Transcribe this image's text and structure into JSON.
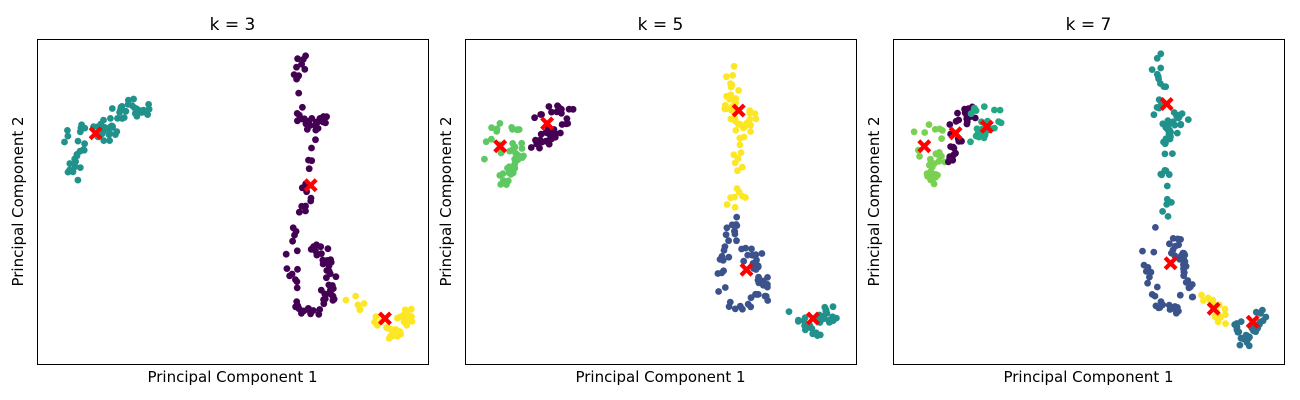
{
  "chart_data": [
    {
      "type": "scatter",
      "title": "k = 3",
      "xlabel": "Principal Component 1",
      "ylabel": "Principal Component 2",
      "xlim": [
        0,
        100
      ],
      "ylim": [
        0,
        100
      ],
      "xticks": "none",
      "yticks": "none",
      "grid": false,
      "legend": "none",
      "clusters": [
        {
          "color": "#21918c",
          "path": [
            [
              6,
              67
            ],
            [
              8,
              71
            ],
            [
              10,
              74
            ],
            [
              12,
              73
            ],
            [
              15,
              72
            ],
            [
              18,
              73
            ],
            [
              20,
              77
            ],
            [
              22,
              79
            ],
            [
              24,
              80
            ],
            [
              26,
              78
            ],
            [
              28,
              79
            ],
            [
              24,
              76
            ],
            [
              20,
              73
            ],
            [
              16,
              67
            ],
            [
              13,
              67
            ],
            [
              10,
              64
            ],
            [
              9,
              61
            ],
            [
              10,
              56
            ]
          ],
          "spread": 2.2,
          "count": 70
        },
        {
          "color": "#440154",
          "path": [
            [
              68,
              95
            ],
            [
              67,
              90
            ],
            [
              67,
              85
            ],
            [
              68,
              80
            ],
            [
              67,
              77
            ],
            [
              70,
              75
            ],
            [
              72,
              73
            ],
            [
              73,
              75
            ],
            [
              73,
              78
            ],
            [
              71,
              73
            ],
            [
              70,
              68
            ],
            [
              70,
              62
            ],
            [
              69,
              56
            ],
            [
              69,
              50
            ],
            [
              68,
              45
            ],
            [
              67,
              41
            ],
            [
              66,
              38
            ],
            [
              65,
              34
            ],
            [
              65,
              31
            ],
            [
              66,
              27
            ],
            [
              66,
              23
            ],
            [
              66,
              20
            ],
            [
              67,
              17
            ],
            [
              69,
              16
            ],
            [
              71,
              17
            ],
            [
              73,
              19
            ],
            [
              74,
              22
            ],
            [
              75,
              26
            ],
            [
              75,
              30
            ],
            [
              74,
              35
            ],
            [
              72,
              37
            ],
            [
              71,
              35
            ],
            [
              72,
              32
            ],
            [
              74,
              30
            ],
            [
              76,
              27
            ],
            [
              76,
              22
            ],
            [
              75,
              19
            ],
            [
              74,
              17
            ],
            [
              72,
              16
            ],
            [
              70,
              15
            ]
          ],
          "spread": 1.6,
          "count": 110
        },
        {
          "color": "#fde725",
          "path": [
            [
              78,
              21
            ],
            [
              81,
              20
            ],
            [
              84,
              17
            ],
            [
              87,
              14
            ],
            [
              89,
              12
            ],
            [
              91,
              10
            ],
            [
              91,
              8
            ],
            [
              93,
              14
            ],
            [
              94,
              17
            ],
            [
              95,
              16
            ],
            [
              96,
              15
            ],
            [
              93,
              12
            ]
          ],
          "spread": 1.4,
          "count": 40
        }
      ],
      "centroids": [
        [
          15,
          71
        ],
        [
          70,
          55
        ],
        [
          89,
          14
        ]
      ],
      "centroid_color": "#ff0000"
    },
    {
      "type": "scatter",
      "title": "k = 5",
      "xlabel": "Principal Component 1",
      "ylabel": "Principal Component 2",
      "xlim": [
        0,
        100
      ],
      "ylim": [
        0,
        100
      ],
      "xticks": "none",
      "yticks": "none",
      "grid": false,
      "legend": "none",
      "clusters": [
        {
          "color": "#5ec962",
          "path": [
            [
              5,
              64
            ],
            [
              5,
              69
            ],
            [
              7,
              72
            ],
            [
              9,
              74
            ],
            [
              12,
              74
            ],
            [
              14,
              71
            ],
            [
              15,
              68
            ],
            [
              14,
              64
            ],
            [
              12,
              62
            ],
            [
              10,
              58
            ],
            [
              11,
              55
            ],
            [
              13,
              67
            ],
            [
              9,
              66
            ]
          ],
          "spread": 1.8,
          "count": 45
        },
        {
          "color": "#440154",
          "path": [
            [
              17,
              75
            ],
            [
              19,
              77
            ],
            [
              22,
              79
            ],
            [
              25,
              79
            ],
            [
              27,
              78
            ],
            [
              26,
              74
            ],
            [
              24,
              71
            ],
            [
              22,
              69
            ],
            [
              20,
              67
            ],
            [
              18,
              67
            ],
            [
              21,
              72
            ]
          ],
          "spread": 1.6,
          "count": 40
        },
        {
          "color": "#fde725",
          "path": [
            [
              68,
              95
            ],
            [
              68,
              90
            ],
            [
              68,
              85
            ],
            [
              69,
              80
            ],
            [
              67,
              76
            ],
            [
              70,
              74
            ],
            [
              72,
              72
            ],
            [
              74,
              75
            ],
            [
              73,
              78
            ],
            [
              71,
              73
            ],
            [
              70,
              68
            ],
            [
              70,
              62
            ],
            [
              69,
              56
            ],
            [
              70,
              52
            ],
            [
              68,
              48
            ]
          ],
          "spread": 1.6,
          "count": 60
        },
        {
          "color": "#3b528b",
          "path": [
            [
              70,
              45
            ],
            [
              68,
              41
            ],
            [
              67,
              37
            ],
            [
              66,
              34
            ],
            [
              65,
              30
            ],
            [
              66,
              26
            ],
            [
              66,
              22
            ],
            [
              68,
              18
            ],
            [
              70,
              16
            ],
            [
              72,
              17
            ],
            [
              74,
              19
            ],
            [
              75,
              23
            ],
            [
              75,
              27
            ],
            [
              75,
              32
            ],
            [
              74,
              36
            ],
            [
              72,
              37
            ],
            [
              71,
              34
            ],
            [
              73,
              31
            ],
            [
              75,
              29
            ],
            [
              77,
              26
            ],
            [
              77,
              22
            ],
            [
              78,
              19
            ]
          ],
          "spread": 1.6,
          "count": 60
        },
        {
          "color": "#21918c",
          "path": [
            [
              82,
              17
            ],
            [
              84,
              15
            ],
            [
              86,
              13
            ],
            [
              88,
              11
            ],
            [
              90,
              9
            ],
            [
              91,
              13
            ],
            [
              92,
              16
            ],
            [
              93,
              17
            ],
            [
              94,
              16
            ],
            [
              95,
              14
            ],
            [
              92,
              12
            ]
          ],
          "spread": 1.4,
          "count": 35
        }
      ],
      "centroids": [
        [
          9,
          67
        ],
        [
          21,
          74
        ],
        [
          70,
          78
        ],
        [
          72,
          29
        ],
        [
          89,
          14
        ]
      ],
      "centroid_color": "#ff0000"
    },
    {
      "type": "scatter",
      "title": "k = 7",
      "xlabel": "Principal Component 1",
      "ylabel": "Principal Component 2",
      "xlim": [
        0,
        100
      ],
      "ylim": [
        0,
        100
      ],
      "xticks": "none",
      "yticks": "none",
      "grid": false,
      "legend": "none",
      "clusters": [
        {
          "color": "#7ad151",
          "path": [
            [
              5,
              66
            ],
            [
              6,
              70
            ],
            [
              8,
              72
            ],
            [
              10,
              73
            ],
            [
              12,
              72
            ],
            [
              13,
              68
            ],
            [
              12,
              64
            ],
            [
              10,
              61
            ],
            [
              10,
              57
            ],
            [
              11,
              55
            ],
            [
              8,
              64
            ]
          ],
          "spread": 1.7,
          "count": 35
        },
        {
          "color": "#440154",
          "path": [
            [
              14,
              72
            ],
            [
              16,
              75
            ],
            [
              18,
              77
            ],
            [
              20,
              79
            ],
            [
              19,
              74
            ],
            [
              18,
              69
            ],
            [
              17,
              66
            ],
            [
              15,
              64
            ],
            [
              14,
              62
            ],
            [
              16,
              71
            ]
          ],
          "spread": 1.5,
          "count": 30
        },
        {
          "color": "#22a884",
          "path": [
            [
              20,
              77
            ],
            [
              22,
              79
            ],
            [
              24,
              78
            ],
            [
              26,
              77
            ],
            [
              27,
              75
            ],
            [
              25,
              72
            ],
            [
              23,
              70
            ],
            [
              21,
              69
            ],
            [
              24,
              74
            ]
          ],
          "spread": 1.4,
          "count": 30
        },
        {
          "color": "#21918c",
          "path": [
            [
              68,
              95
            ],
            [
              68,
              90
            ],
            [
              68,
              85
            ],
            [
              69,
              80
            ],
            [
              67,
              76
            ],
            [
              70,
              74
            ],
            [
              72,
              72
            ],
            [
              74,
              75
            ],
            [
              73,
              78
            ],
            [
              71,
              73
            ],
            [
              70,
              68
            ],
            [
              70,
              62
            ],
            [
              69,
              57
            ],
            [
              70,
              53
            ],
            [
              70,
              48
            ],
            [
              69,
              44
            ]
          ],
          "spread": 1.6,
          "count": 60
        },
        {
          "color": "#3b528b",
          "path": [
            [
              68,
              42
            ],
            [
              66,
              38
            ],
            [
              65,
              34
            ],
            [
              65,
              30
            ],
            [
              66,
              26
            ],
            [
              66,
              22
            ],
            [
              68,
              18
            ],
            [
              70,
              16
            ],
            [
              72,
              17
            ],
            [
              74,
              19
            ],
            [
              75,
              23
            ],
            [
              75,
              27
            ],
            [
              74,
              32
            ],
            [
              73,
              36
            ],
            [
              72,
              38
            ],
            [
              73,
              34
            ],
            [
              74,
              31
            ],
            [
              75,
              28
            ],
            [
              76,
              25
            ],
            [
              77,
              22
            ],
            [
              75,
              20
            ]
          ],
          "spread": 1.6,
          "count": 55
        },
        {
          "color": "#fde725",
          "path": [
            [
              79,
              21
            ],
            [
              81,
              19
            ],
            [
              83,
              17
            ],
            [
              84,
              15
            ],
            [
              85,
              12
            ],
            [
              83,
              14
            ],
            [
              82,
              16
            ]
          ],
          "spread": 1.3,
          "count": 20
        },
        {
          "color": "#2c728e",
          "path": [
            [
              87,
              12
            ],
            [
              89,
              10
            ],
            [
              91,
              11
            ],
            [
              92,
              13
            ],
            [
              93,
              15
            ],
            [
              94,
              16
            ],
            [
              95,
              14
            ],
            [
              93,
              11
            ],
            [
              90,
              9
            ],
            [
              90,
              6
            ],
            [
              89,
              5
            ]
          ],
          "spread": 1.4,
          "count": 35
        }
      ],
      "centroids": [
        [
          8,
          67
        ],
        [
          16,
          71
        ],
        [
          24,
          73
        ],
        [
          70,
          80
        ],
        [
          71,
          31
        ],
        [
          82,
          17
        ],
        [
          92,
          13
        ]
      ],
      "centroid_color": "#ff0000"
    }
  ]
}
